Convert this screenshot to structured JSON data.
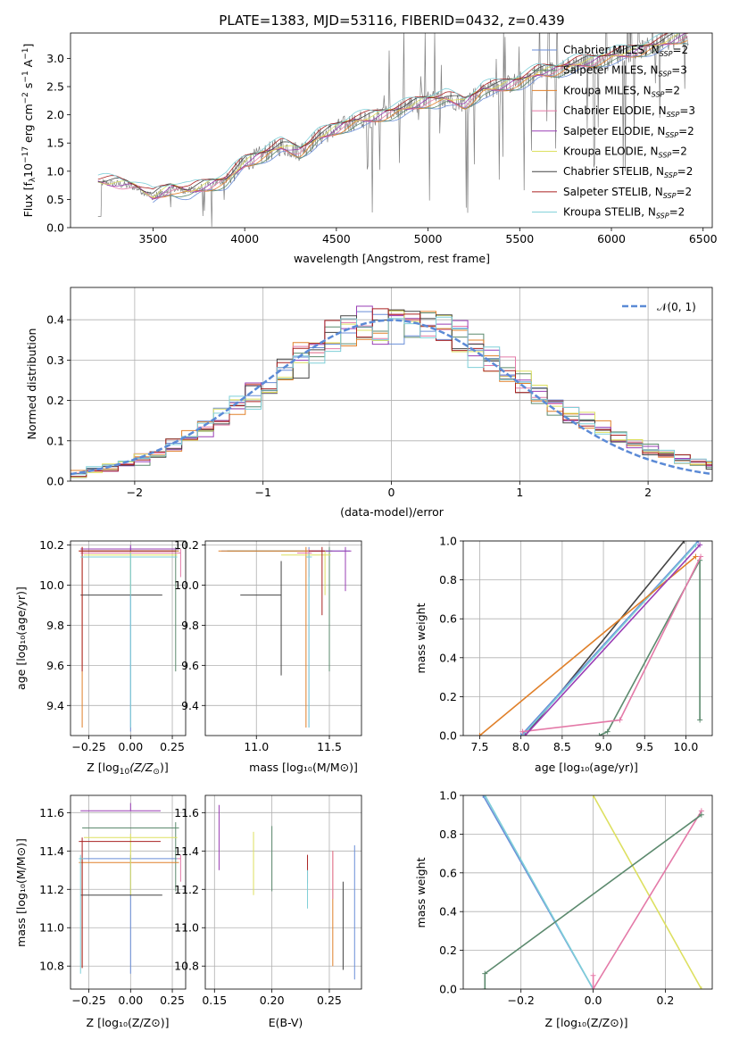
{
  "title": "PLATE=1383, MJD=53116, FIBERID=0432, z=0.439",
  "colors": {
    "Chabrier MILES": "#6a8ed8",
    "Salpeter MILES": "#5c8a6e",
    "Kroupa MILES": "#e0802a",
    "Chabrier ELODIE": "#e47aa8",
    "Salpeter ELODIE": "#9a3fb5",
    "Kroupa ELODIE": "#dde060",
    "Chabrier STELIB": "#444444",
    "Salpeter STELIB": "#aa2222",
    "Kroupa STELIB": "#7ecfd8",
    "gaussian": "#5b8ad6",
    "data": "#7f7f7f"
  },
  "panels": {
    "spectrum": {
      "xlabel": "wavelength [Angstrom, rest frame]",
      "ylabel_pre": "Flux [f",
      "ylabel_sub": "λ",
      "ylabel_post": "10",
      "ylabel_sup1": "−17",
      "ylabel_tail1": " erg cm",
      "ylabel_sup2": "−2",
      "ylabel_tail2": " s",
      "ylabel_sup3": "−1",
      "ylabel_tail3": " A",
      "ylabel_sup4": "−1",
      "ylabel_end": "]"
    },
    "residuals": {
      "xlabel": "(data-model)/error",
      "ylabel": "Normed distribution",
      "legend": "𝒩(0, 1)"
    },
    "age_z": {
      "xlabel_pre": "Z [log",
      "xlabel_sub": "10",
      "xlabel_post": "(Z/Z",
      "xlabel_sun": "⊙",
      "xlabel_end": ")]",
      "ylabel": "age  [log₁₀(age/yr)]"
    },
    "age_mass": {
      "xlabel": "mass [log₁₀(M/M⊙)]"
    },
    "weight_age": {
      "xlabel": "age  [log₁₀(age/yr)]",
      "ylabel": "mass weight"
    },
    "mass_z": {
      "xlabel": "Z [log₁₀(Z/Z⊙)]",
      "ylabel": "mass [log₁₀(M/M⊙)]"
    },
    "mass_ebv": {
      "xlabel": "E(B-V)"
    },
    "weight_z": {
      "xlabel": "Z [log₁₀(Z/Z⊙)]",
      "ylabel": "mass weight"
    }
  },
  "legend_entries": [
    {
      "imf": "Chabrier",
      "lib": "MILES",
      "n": "2"
    },
    {
      "imf": "Salpeter",
      "lib": "MILES",
      "n": "3"
    },
    {
      "imf": "Kroupa",
      "lib": "MILES",
      "n": "2"
    },
    {
      "imf": "Chabrier",
      "lib": "ELODIE",
      "n": "3"
    },
    {
      "imf": "Salpeter",
      "lib": "ELODIE",
      "n": "2"
    },
    {
      "imf": "Kroupa",
      "lib": "ELODIE",
      "n": "2"
    },
    {
      "imf": "Chabrier",
      "lib": "STELIB",
      "n": "2"
    },
    {
      "imf": "Salpeter",
      "lib": "STELIB",
      "n": "2"
    },
    {
      "imf": "Kroupa",
      "lib": "STELIB",
      "n": "2"
    }
  ],
  "chart_data": [
    {
      "type": "line",
      "name": "spectrum",
      "xlim": [
        3050,
        6550
      ],
      "ylim": [
        0,
        3.45
      ],
      "xticks": [
        3500,
        4000,
        4500,
        5000,
        5500,
        6000,
        6500
      ],
      "yticks": [
        0.0,
        0.5,
        1.0,
        1.5,
        2.0,
        2.5,
        3.0
      ],
      "continuum": [
        [
          3200,
          0.8
        ],
        [
          3300,
          0.78
        ],
        [
          3400,
          0.72
        ],
        [
          3500,
          0.55
        ],
        [
          3600,
          0.7
        ],
        [
          3700,
          0.65
        ],
        [
          3800,
          0.75
        ],
        [
          3900,
          0.85
        ],
        [
          4000,
          1.15
        ],
        [
          4100,
          1.3
        ],
        [
          4200,
          1.45
        ],
        [
          4300,
          1.35
        ],
        [
          4400,
          1.6
        ],
        [
          4500,
          1.75
        ],
        [
          4600,
          1.9
        ],
        [
          4700,
          1.95
        ],
        [
          4800,
          2.05
        ],
        [
          4900,
          2.15
        ],
        [
          5000,
          2.25
        ],
        [
          5100,
          2.3
        ],
        [
          5200,
          2.2
        ],
        [
          5300,
          2.45
        ],
        [
          5400,
          2.5
        ],
        [
          5500,
          2.6
        ],
        [
          5600,
          2.75
        ],
        [
          5700,
          2.8
        ],
        [
          5800,
          2.9
        ],
        [
          5900,
          2.95
        ],
        [
          6000,
          3.05
        ],
        [
          6100,
          3.1
        ],
        [
          6200,
          3.2
        ],
        [
          6300,
          3.3
        ],
        [
          6400,
          3.4
        ]
      ],
      "grid": false
    },
    {
      "type": "line",
      "name": "residual histograms",
      "xlim": [
        -2.5,
        2.5
      ],
      "ylim": [
        0,
        0.48
      ],
      "xticks": [
        -2,
        -1,
        0,
        1,
        2
      ],
      "yticks": [
        0.0,
        0.1,
        0.2,
        0.3,
        0.4
      ],
      "grid": true,
      "bins": 42,
      "gaussian": {
        "mu": 0,
        "sigma": 1
      }
    },
    {
      "type": "scatter",
      "name": "age vs Z",
      "xlim": [
        -0.36,
        0.33
      ],
      "ylim": [
        9.25,
        10.22
      ],
      "xticks": [
        -0.25,
        0.0,
        0.25
      ],
      "yticks": [
        9.4,
        9.6,
        9.8,
        10.0,
        10.2
      ],
      "grid": true
    },
    {
      "type": "scatter",
      "name": "age vs mass",
      "xlim": [
        10.65,
        11.72
      ],
      "ylim": [
        9.25,
        10.22
      ],
      "xticks": [
        11.0,
        11.5
      ],
      "yticks": [
        9.4,
        9.6,
        9.8,
        10.0,
        10.2
      ],
      "grid": true
    },
    {
      "type": "line",
      "name": "mass weight vs age",
      "xlim": [
        7.3,
        10.32
      ],
      "ylim": [
        0,
        1.0
      ],
      "xticks": [
        7.5,
        8.0,
        8.5,
        9.0,
        9.5,
        10.0
      ],
      "yticks": [
        0.0,
        0.2,
        0.4,
        0.6,
        0.8,
        1.0
      ],
      "grid": true
    },
    {
      "type": "scatter",
      "name": "mass vs Z",
      "xlim": [
        -0.36,
        0.33
      ],
      "ylim": [
        10.68,
        11.69
      ],
      "xticks": [
        -0.25,
        0.0,
        0.25
      ],
      "yticks": [
        10.8,
        11.0,
        11.2,
        11.4,
        11.6
      ],
      "grid": true
    },
    {
      "type": "scatter",
      "name": "mass vs E(B-V)",
      "xlim": [
        0.142,
        0.278
      ],
      "ylim": [
        10.68,
        11.69
      ],
      "xticks": [
        0.15,
        0.2,
        0.25
      ],
      "yticks": [
        10.8,
        11.0,
        11.2,
        11.4,
        11.6
      ],
      "grid": true
    },
    {
      "type": "line",
      "name": "mass weight vs Z",
      "xlim": [
        -0.36,
        0.33
      ],
      "ylim": [
        0,
        1.0
      ],
      "xticks": [
        -0.2,
        0.0,
        0.2
      ],
      "yticks": [
        0.0,
        0.2,
        0.4,
        0.6,
        0.8,
        1.0
      ],
      "grid": true
    }
  ]
}
